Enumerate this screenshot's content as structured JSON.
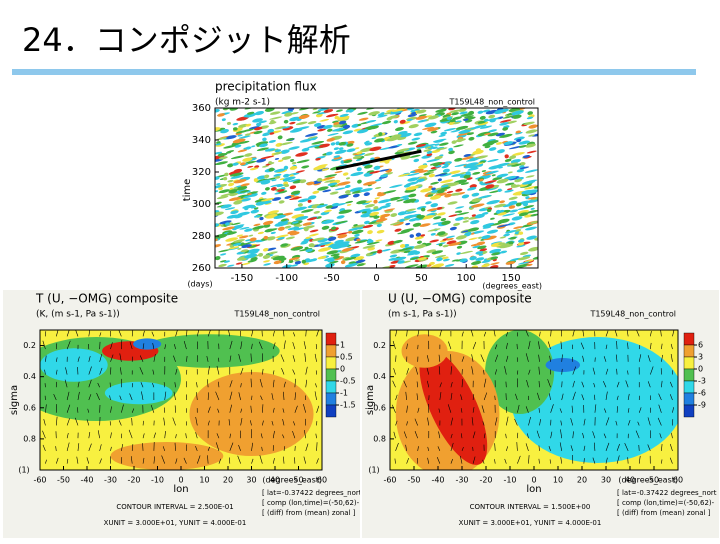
{
  "title": "24．コンポジット解析",
  "panels": [
    {
      "title": "precipitation flux",
      "units": "(kg m-2 s-1)",
      "run": "T159L48_non_control",
      "ylabel": "time",
      "yunit": "(days)",
      "xunit": "(degrees_east)",
      "xlim": [
        -180,
        180
      ],
      "ylim": [
        260,
        360
      ],
      "xticks": [
        -150,
        -100,
        -50,
        0,
        50,
        100,
        150
      ],
      "yticks": [
        260,
        280,
        300,
        320,
        340,
        360
      ]
    },
    {
      "title": "T (U, −OMG) composite",
      "units": "(K, (m s-1, Pa s-1))",
      "run": "T159L48_non_control",
      "ylabel": "sigma",
      "corner": "(1)",
      "xlabel": "lon",
      "xunit": "(degrees_east)",
      "xlim": [
        -60,
        60
      ],
      "ylim": [
        1,
        0.1
      ],
      "xticks": [
        -60,
        -50,
        -40,
        -30,
        -20,
        -10,
        0,
        10,
        20,
        30,
        40,
        50,
        60
      ],
      "yticks": [
        0.2,
        0.4,
        0.6,
        0.8
      ],
      "colorbar_ticks": [
        1,
        0.5,
        0,
        -0.5,
        -1,
        -1.5
      ],
      "contour_interval": "CONTOUR INTERVAL = 2.500E-01",
      "units_note": "XUNIT = 3.000E+01, YUNIT = 4.000E-01",
      "notes": [
        "[ lat=-0.37422 degrees_nort",
        "[ comp (lon,time)=(-50,62)-",
        "[ (diff) from (mean) zonal ]"
      ]
    },
    {
      "title": "U (U, −OMG) composite",
      "units": "(m s-1, Pa s-1))",
      "run": "T159L48_non_control",
      "ylabel": "sigma",
      "corner": "(1)",
      "xlabel": "lon",
      "xunit": "(degrees_east)",
      "xlim": [
        -60,
        60
      ],
      "ylim": [
        1,
        0.1
      ],
      "xticks": [
        -60,
        -50,
        -40,
        -30,
        -20,
        -10,
        0,
        10,
        20,
        30,
        40,
        50,
        60
      ],
      "yticks": [
        0.2,
        0.4,
        0.6,
        0.8
      ],
      "colorbar_ticks": [
        6,
        3,
        0,
        -3,
        -6,
        -9
      ],
      "contour_interval": "CONTOUR INTERVAL = 1.500E+00",
      "units_note": "XUNIT = 3.000E+01, YUNIT = 4.000E-01",
      "notes": [
        "[ lat=-0.37422 degrees_nort",
        "[ comp (lon,time)=(-50,62)-",
        "[ (diff) from (mean) zonal ]"
      ]
    }
  ]
}
